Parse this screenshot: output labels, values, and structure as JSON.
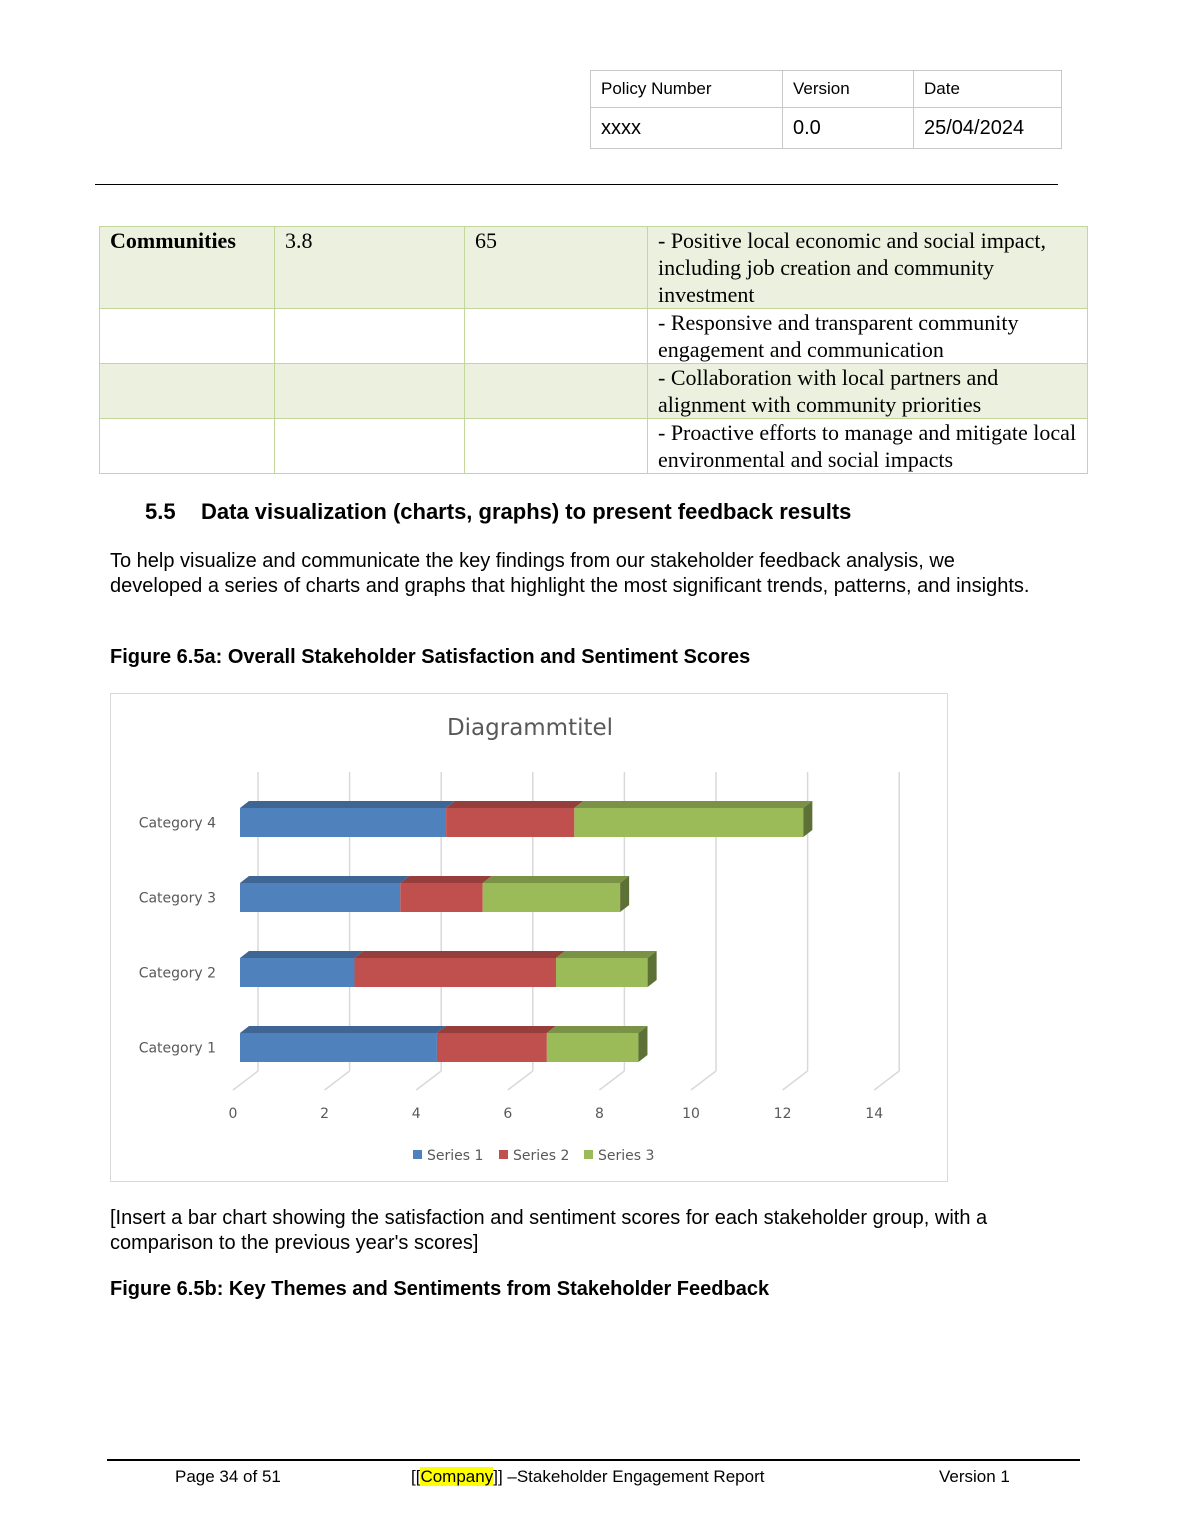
{
  "header_table": {
    "headers": [
      "Policy Number",
      "Version",
      "Date"
    ],
    "values": [
      "xxxx",
      "0.0",
      "25/04/2024"
    ]
  },
  "communities_table": {
    "rows": [
      [
        "Communities",
        "3.8",
        "65",
        "- Positive local economic and social impact, including job creation and community investment"
      ],
      [
        "",
        "",
        "",
        "- Responsive and transparent community engagement and communication"
      ],
      [
        "",
        "",
        "",
        "- Collaboration with local partners and alignment with community priorities"
      ],
      [
        "",
        "",
        "",
        "- Proactive efforts to manage and mitigate local environmental and social impacts"
      ]
    ]
  },
  "section": {
    "number": "5.5",
    "title": "Data visualization (charts, graphs) to present feedback results"
  },
  "intro": "To help visualize and communicate the key findings from our stakeholder feedback analysis, we developed a series of charts and graphs that highlight the most significant trends, patterns, and insights.",
  "figure_a_caption": "Figure 6.5a: Overall Stakeholder Satisfaction and Sentiment Scores",
  "chart_data": {
    "type": "bar",
    "orientation": "horizontal",
    "stacked": true,
    "style": "3d",
    "title": "Diagrammtitel",
    "categories": [
      "Category 1",
      "Category 2",
      "Category 3",
      "Category 4"
    ],
    "series": [
      {
        "name": "Series 1",
        "values": [
          4.3,
          2.5,
          3.5,
          4.5
        ],
        "color": "#4f81bd"
      },
      {
        "name": "Series 2",
        "values": [
          2.4,
          4.4,
          1.8,
          2.8
        ],
        "color": "#c0504d"
      },
      {
        "name": "Series 3",
        "values": [
          2,
          2,
          3,
          5
        ],
        "color": "#9bbb59"
      }
    ],
    "xlim": [
      0,
      14
    ],
    "xticks": [
      "0",
      "2",
      "4",
      "6",
      "8",
      "10",
      "12",
      "14"
    ],
    "grid": true,
    "legend": "bottom"
  },
  "insert_note": " [Insert a bar chart showing the satisfaction and sentiment scores for each stakeholder group, with a comparison to the previous year's scores]",
  "figure_b_caption": "Figure 6.5b: Key Themes and Sentiments from Stakeholder Feedback",
  "footer": {
    "page": "Page 34 of 51",
    "company_prefix": "[[",
    "company": "Company",
    "company_suffix": "]] –Stakeholder Engagement Report",
    "version": "Version 1"
  }
}
